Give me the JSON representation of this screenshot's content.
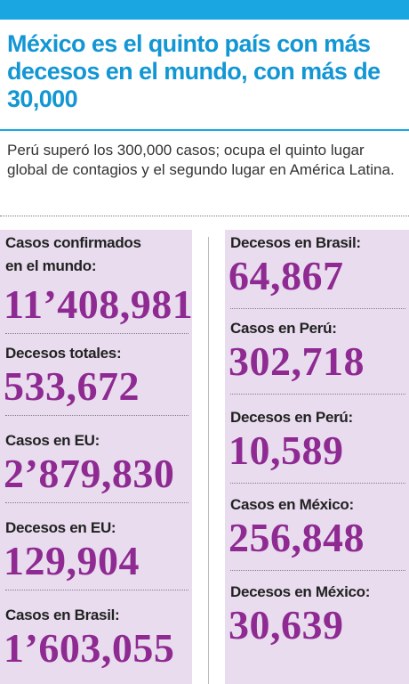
{
  "header": {
    "title": "México es el quinto país con más decesos en el mundo, con más de 30,000",
    "subtitle": "Perú superó los 300,000 casos; ocupa el quinto lugar global de contagios y el segundo lugar en América Latina."
  },
  "left_column": [
    {
      "label_line1": "Casos confirmados",
      "label_line2": "en el mundo:",
      "value": "11’408,981"
    },
    {
      "label": "Decesos totales:",
      "value": "533,672"
    },
    {
      "label": "Casos en EU:",
      "value": "2’879,830"
    },
    {
      "label": "Decesos en EU:",
      "value": "129,904"
    },
    {
      "label": "Casos en Brasil:",
      "value": "1’603,055"
    }
  ],
  "right_column": [
    {
      "label": "Decesos en Brasil:",
      "value": "64,867"
    },
    {
      "label": "Casos en Perú:",
      "value": "302,718"
    },
    {
      "label": "Decesos en Perú:",
      "value": "10,589"
    },
    {
      "label": "Casos en México:",
      "value": "256,848"
    },
    {
      "label": "Decesos en México:",
      "value": "30,639"
    }
  ],
  "colors": {
    "accent_blue": "#1aa6e0",
    "value_purple": "#8e2a91",
    "panel_lavender": "#e8dcee"
  }
}
